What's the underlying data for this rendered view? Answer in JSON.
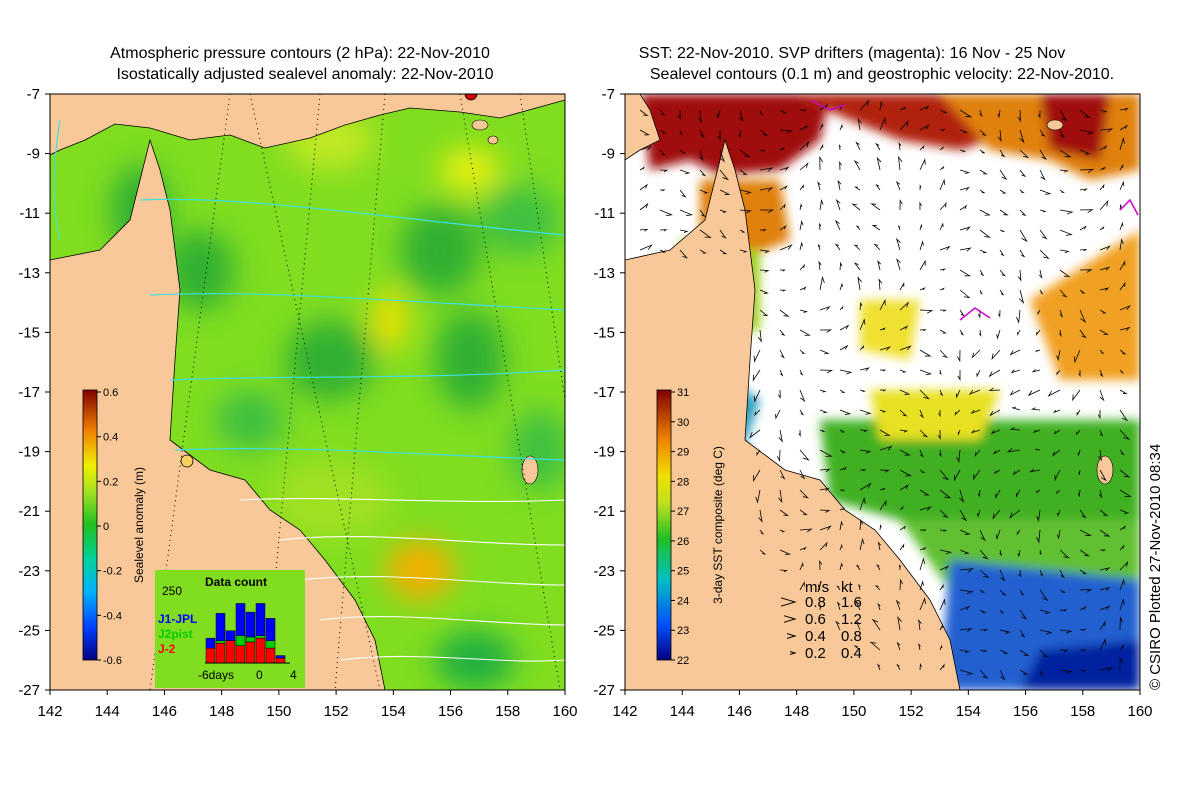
{
  "chart_data": [
    {
      "type": "heatmap",
      "title_lines": [
        "Atmospheric pressure contours (2 hPa): 22-Nov-2010",
        "Isostatically adjusted sealevel anomaly: 22-Nov-2010"
      ],
      "x_ticks": [
        "142",
        "144",
        "146",
        "148",
        "150",
        "152",
        "154",
        "156",
        "158",
        "160"
      ],
      "y_ticks": [
        "-7",
        "-9",
        "-11",
        "-13",
        "-15",
        "-17",
        "-19",
        "-21",
        "-23",
        "-25",
        "-27"
      ],
      "xlim": [
        142,
        160
      ],
      "ylim": [
        -27,
        -7
      ],
      "colorbar": {
        "label": "Sealevel anomaly (m)",
        "ticks": [
          "0.6",
          "0.4",
          "0.2",
          "0",
          "-0.2",
          "-0.4",
          "-0.6"
        ],
        "range": [
          -0.6,
          0.6
        ]
      },
      "inset": {
        "title": "Data count",
        "ymax_label": "250",
        "x_labels": [
          "-6days",
          "0",
          "4"
        ],
        "legend": [
          {
            "name": "J1-JPL",
            "color": "#0000ff"
          },
          {
            "name": "J2pist",
            "color": "#00cc00"
          },
          {
            "name": "J-2",
            "color": "#ff0000"
          }
        ],
        "bars": [
          {
            "day": -6,
            "j2": 60,
            "j2pist": 0,
            "j1": 40
          },
          {
            "day": -5,
            "j2": 80,
            "j2pist": 10,
            "j1": 110
          },
          {
            "day": -4,
            "j2": 90,
            "j2pist": 0,
            "j1": 40
          },
          {
            "day": -3,
            "j2": 70,
            "j2pist": 40,
            "j1": 130
          },
          {
            "day": -2,
            "j2": 85,
            "j2pist": 20,
            "j1": 100
          },
          {
            "day": -1,
            "j2": 100,
            "j2pist": 10,
            "j1": 130
          },
          {
            "day": 0,
            "j2": 60,
            "j2pist": 30,
            "j1": 90
          },
          {
            "day": 1,
            "j2": 20,
            "j2pist": 0,
            "j1": 10
          }
        ]
      }
    },
    {
      "type": "heatmap",
      "title_lines": [
        "SST: 22-Nov-2010. SVP drifters (magenta): 16 Nov - 25 Nov",
        "Sealevel contours (0.1 m) and geostrophic velocity: 22-Nov-2010."
      ],
      "x_ticks": [
        "142",
        "144",
        "146",
        "148",
        "150",
        "152",
        "154",
        "156",
        "158",
        "160"
      ],
      "y_ticks": [
        "-7",
        "-9",
        "-11",
        "-13",
        "-15",
        "-17",
        "-19",
        "-21",
        "-23",
        "-25",
        "-27"
      ],
      "xlim": [
        142,
        160
      ],
      "ylim": [
        -27,
        -7
      ],
      "colorbar": {
        "label": "3-day SST composite (deg C)",
        "ticks": [
          "31",
          "30",
          "29",
          "28",
          "27",
          "26",
          "25",
          "24",
          "23",
          "22"
        ],
        "range": [
          22,
          31
        ]
      },
      "velocity_key": {
        "header_ms": "m/s",
        "header_kt": "kt",
        "rows": [
          {
            "ms": "0.8",
            "kt": "1.6"
          },
          {
            "ms": "0.6",
            "kt": "1.2"
          },
          {
            "ms": "0.4",
            "kt": "0.8"
          },
          {
            "ms": "0.2",
            "kt": "0.4"
          }
        ]
      }
    }
  ],
  "copyright": "© CSIRO Plotted 27-Nov-2010 08:34",
  "colors": {
    "land": "#f8c898",
    "ocean_green": "#80dd20",
    "ssh_deep": "#40c040",
    "sst_white": "#ffffff"
  }
}
